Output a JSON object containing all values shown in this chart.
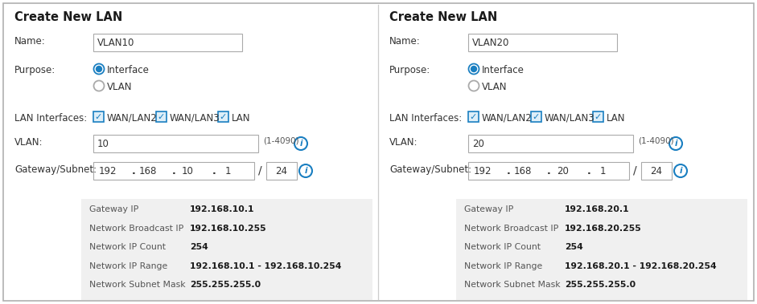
{
  "bg_color": "#ffffff",
  "border_color": "#b0b0b0",
  "panel_divider": "#cccccc",
  "title_color": "#1a1a1a",
  "label_color": "#333333",
  "input_bg": "#ffffff",
  "input_border": "#aaaaaa",
  "check_color": "#1a7fc1",
  "summary_bg": "#f0f0f0",
  "summary_label_color": "#555555",
  "summary_value_color": "#1a1a1a",
  "panels": [
    {
      "title": "Create New LAN",
      "name_label": "Name:",
      "name_value": "VLAN10",
      "purpose_label": "Purpose:",
      "radio_options": [
        "Interface",
        "VLAN"
      ],
      "radio_selected": 0,
      "lan_label": "LAN Interfaces:",
      "checkboxes": [
        "WAN/LAN2",
        "WAN/LAN3",
        "LAN"
      ],
      "vlan_label": "VLAN:",
      "vlan_value": "10",
      "vlan_range": "(1-4090)",
      "gw_label": "Gateway/Subnet:",
      "gw_parts": [
        "192",
        "168",
        "10",
        "1"
      ],
      "subnet": "24",
      "summary": [
        [
          "Gateway IP",
          "192.168.10.1"
        ],
        [
          "Network Broadcast IP",
          "192.168.10.255"
        ],
        [
          "Network IP Count",
          "254"
        ],
        [
          "Network IP Range",
          "192.168.10.1 - 192.168.10.254"
        ],
        [
          "Network Subnet Mask",
          "255.255.255.0"
        ]
      ]
    },
    {
      "title": "Create New LAN",
      "name_label": "Name:",
      "name_value": "VLAN20",
      "purpose_label": "Purpose:",
      "radio_options": [
        "Interface",
        "VLAN"
      ],
      "radio_selected": 0,
      "lan_label": "LAN Interfaces:",
      "checkboxes": [
        "WAN/LAN2",
        "WAN/LAN3",
        "LAN"
      ],
      "vlan_label": "VLAN:",
      "vlan_value": "20",
      "vlan_range": "(1-4090)",
      "gw_label": "Gateway/Subnet:",
      "gw_parts": [
        "192",
        "168",
        "20",
        "1"
      ],
      "subnet": "24",
      "summary": [
        [
          "Gateway IP",
          "192.168.20.1"
        ],
        [
          "Network Broadcast IP",
          "192.168.20.255"
        ],
        [
          "Network IP Count",
          "254"
        ],
        [
          "Network IP Range",
          "192.168.20.1 - 192.168.20.254"
        ],
        [
          "Network Subnet Mask",
          "255.255.255.0"
        ]
      ]
    }
  ],
  "figsize": [
    9.41,
    3.79
  ],
  "dpi": 100
}
